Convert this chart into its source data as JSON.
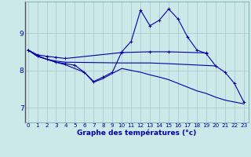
{
  "title": "Graphe des températures (°c)",
  "bg_color": "#cce8e8",
  "grid_color": "#aacccc",
  "line_color": "#0000aa",
  "x_ticks": [
    0,
    1,
    2,
    3,
    4,
    5,
    6,
    7,
    8,
    9,
    10,
    11,
    12,
    13,
    14,
    15,
    16,
    17,
    18,
    19,
    20,
    21,
    22,
    23
  ],
  "y_ticks": [
    7,
    8,
    9
  ],
  "ylim": [
    6.6,
    9.85
  ],
  "xlim": [
    -0.3,
    23.5
  ],
  "series": [
    {
      "x": [
        0,
        1,
        2,
        3,
        4,
        5,
        6,
        7,
        8,
        9,
        10,
        11,
        12,
        13,
        14,
        15,
        16,
        17,
        18,
        19,
        20,
        21,
        22,
        23
      ],
      "y": [
        8.55,
        8.4,
        8.3,
        8.22,
        8.18,
        8.14,
        7.95,
        7.7,
        7.82,
        7.95,
        8.5,
        8.78,
        9.62,
        9.2,
        9.35,
        9.65,
        9.38,
        8.9,
        8.55,
        8.45,
        8.12,
        7.95,
        7.65,
        7.15
      ],
      "marker": true
    },
    {
      "x": [
        0,
        1,
        2,
        3,
        4,
        10,
        13,
        15,
        19
      ],
      "y": [
        8.55,
        8.42,
        8.38,
        8.35,
        8.32,
        8.48,
        8.5,
        8.5,
        8.47
      ],
      "marker": true
    },
    {
      "x": [
        0,
        1,
        2,
        3,
        4,
        10,
        13,
        15,
        20
      ],
      "y": [
        8.55,
        8.38,
        8.3,
        8.25,
        8.22,
        8.2,
        8.2,
        8.18,
        8.12
      ],
      "marker": false
    },
    {
      "x": [
        0,
        1,
        2,
        3,
        4,
        5,
        6,
        7,
        8,
        9,
        10,
        11,
        12,
        13,
        14,
        15,
        16,
        17,
        18,
        19,
        20,
        21,
        22,
        23
      ],
      "y": [
        8.55,
        8.38,
        8.3,
        8.22,
        8.15,
        8.05,
        7.95,
        7.68,
        7.78,
        7.92,
        8.05,
        8.0,
        7.95,
        7.88,
        7.82,
        7.75,
        7.65,
        7.55,
        7.45,
        7.38,
        7.28,
        7.2,
        7.15,
        7.1
      ],
      "marker": false
    }
  ]
}
